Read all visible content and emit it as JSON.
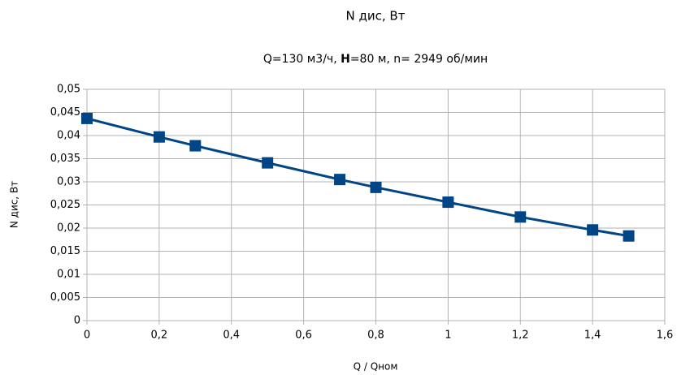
{
  "chart_data": {
    "type": "line",
    "title": "N дис, Вт",
    "subtitle": [
      "Q=130 м3/ч, ",
      "H",
      "=80 м, n= 2949 об/мин"
    ],
    "xlabel": "Q / Qном",
    "ylabel": "N дис, Вт",
    "x": [
      0,
      0.2,
      0.3,
      0.5,
      0.7,
      0.8,
      1,
      1.2,
      1.4,
      1.5
    ],
    "series": [
      {
        "name": "N дис",
        "color": "#004586",
        "values": [
          0.0437,
          0.0397,
          0.0378,
          0.0341,
          0.0305,
          0.0288,
          0.0256,
          0.0224,
          0.0196,
          0.0183
        ]
      }
    ],
    "xlim": [
      0,
      1.6
    ],
    "xticks": [
      0,
      {
        "value": 0.2,
        "label": "0,2"
      },
      {
        "value": 0.4,
        "label": "0,4"
      },
      {
        "value": 0.6,
        "label": "0,6"
      },
      {
        "value": 0.8,
        "label": "0,8"
      },
      1,
      {
        "value": 1.2,
        "label": "1,2"
      },
      {
        "value": 1.4,
        "label": "1,4"
      },
      {
        "value": 1.6,
        "label": "1,6"
      }
    ],
    "ylim": [
      0,
      0.05
    ],
    "yticks": [
      0,
      {
        "value": 0.005,
        "label": "0,005"
      },
      {
        "value": 0.01,
        "label": "0,01"
      },
      {
        "value": 0.015,
        "label": "0,015"
      },
      {
        "value": 0.02,
        "label": "0,02"
      },
      {
        "value": 0.025,
        "label": "0,025"
      },
      {
        "value": 0.03,
        "label": "0,03"
      },
      {
        "value": 0.035,
        "label": "0,035"
      },
      {
        "value": 0.04,
        "label": "0,04"
      },
      {
        "value": 0.045,
        "label": "0,045"
      },
      {
        "value": 0.05,
        "label": "0,05"
      }
    ],
    "grid": true
  }
}
